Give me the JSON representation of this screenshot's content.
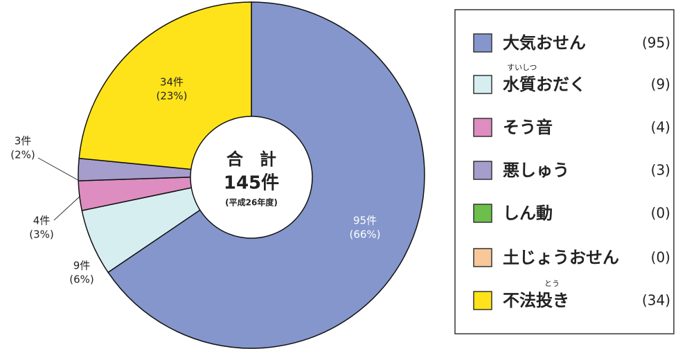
{
  "chart_data": {
    "type": "pie",
    "categories": [
      "大気おせん",
      "水質おだく",
      "そう音",
      "悪しゅう",
      "しん動",
      "土じょうおせん",
      "不法投き"
    ],
    "values": [
      95,
      9,
      4,
      3,
      0,
      0,
      34
    ],
    "colors": [
      "#8496cb",
      "#d6eef0",
      "#de8dc0",
      "#a59dcc",
      "#6cbf4a",
      "#f8c79a",
      "#ffe31a"
    ],
    "value_labels": [
      "95件",
      "9件",
      "4件",
      "3件",
      null,
      null,
      "34件"
    ],
    "percent_labels": [
      "(66%)",
      "(6%)",
      "(3%)",
      "(2%)",
      null,
      null,
      "(23%)"
    ],
    "legend_labels": [
      "(95)",
      "(9)",
      "(4)",
      "(3)",
      "(0)",
      "(0)",
      "(34)"
    ],
    "ruby": [
      null,
      "すいしつ",
      null,
      null,
      null,
      null,
      "とう"
    ],
    "center_title": "合　計",
    "center_total": "145件",
    "center_note": "(平成26年度)"
  }
}
